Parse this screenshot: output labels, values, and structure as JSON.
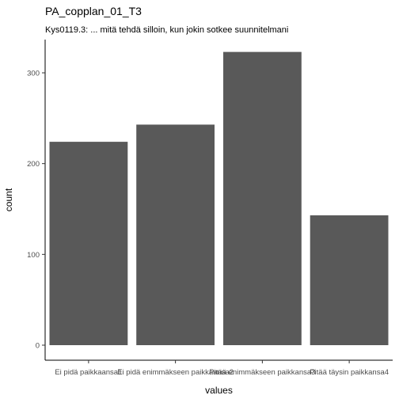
{
  "chart_data": {
    "type": "bar",
    "title": "PA_copplan_01_T3",
    "subtitle": "Kys0119.3: ... mitä tehdä silloin, kun jokin sotkee suunnitelmani",
    "xlabel": "values",
    "ylabel": "count",
    "categories": [
      "Ei pidä paikkaansa1",
      "Ei pidä enimmäkseen paikkaansa2",
      "Pitää enimmäkseen paikkansa3",
      "Pitää täysin paikkansa4"
    ],
    "values": [
      224,
      243,
      323,
      143
    ],
    "ylim": [
      0,
      345
    ],
    "yticks": [
      0,
      100,
      200,
      300
    ],
    "bar_color": "#595959",
    "grid": false,
    "legend": "none"
  }
}
